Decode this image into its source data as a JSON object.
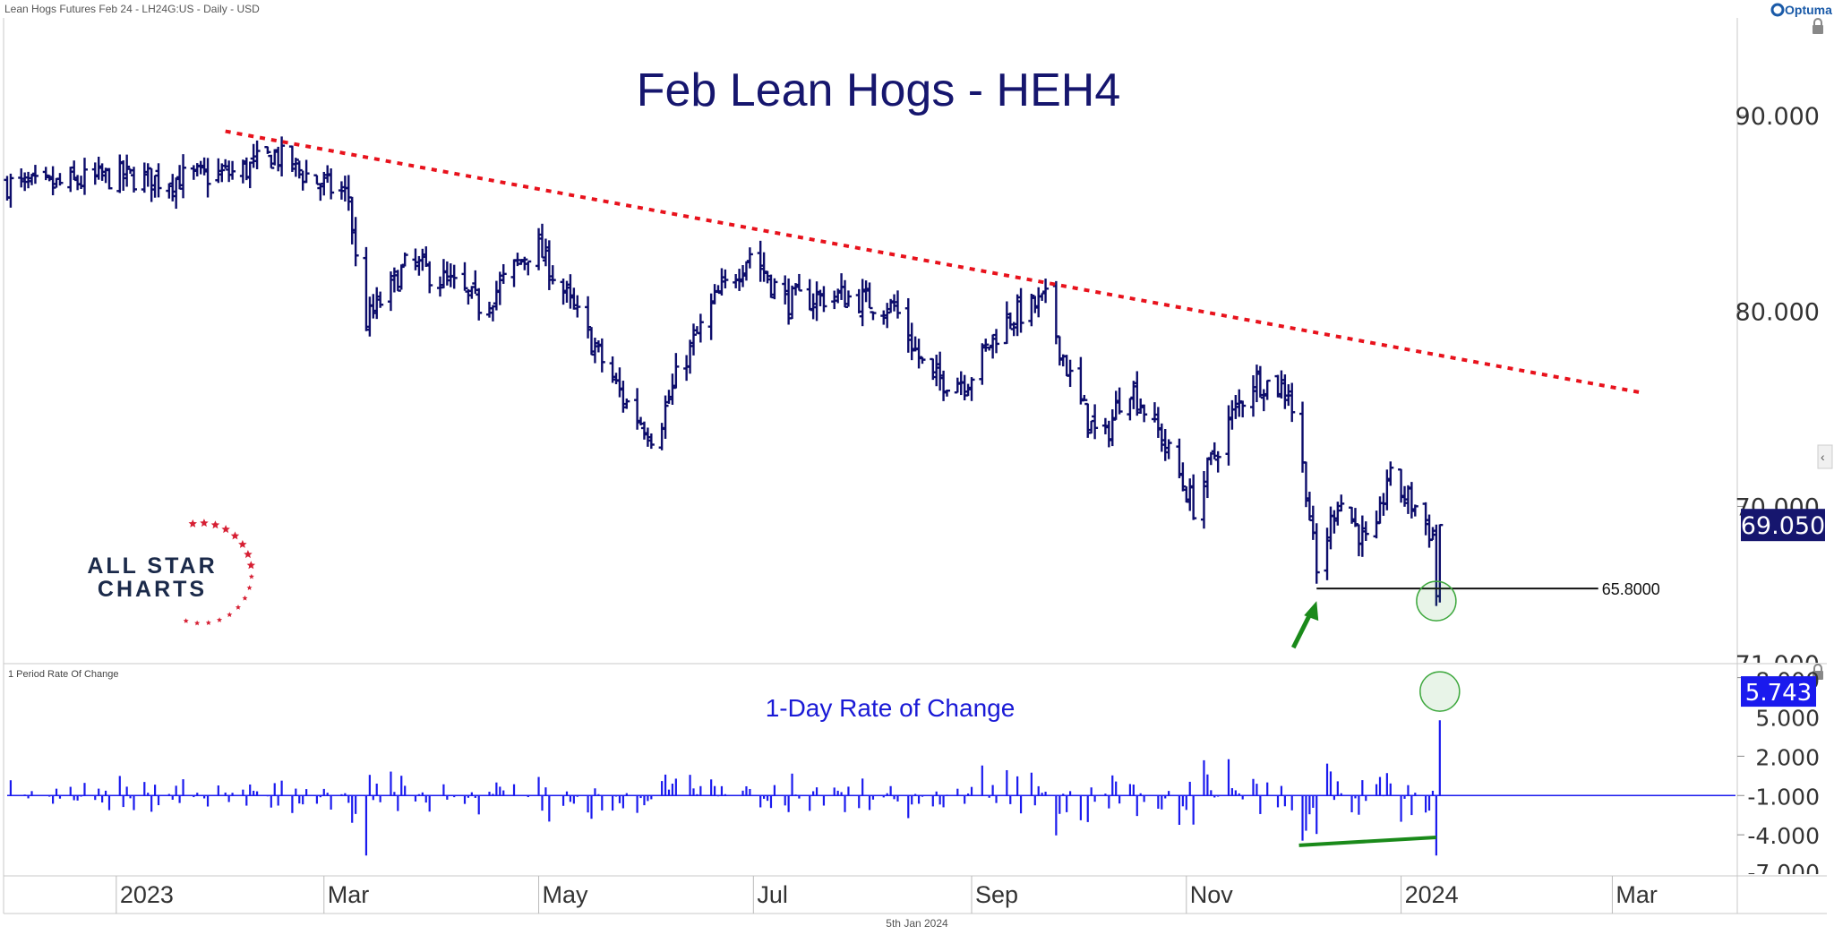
{
  "header": {
    "instrument": "Lean Hogs Futures Feb 24 - LH24G:US - Daily - USD",
    "brand": "Optuma"
  },
  "footer": {
    "date": "5th Jan 2024"
  },
  "logo": {
    "line1": "ALL STAR",
    "line2": "CHARTS"
  },
  "colors": {
    "price_bars": "#0d0d6b",
    "trendline": "#e8121c",
    "roc_bars": "#1a1aee",
    "roc_title": "#1a1ad6",
    "arrow": "#1a8a1a",
    "circle": "#3ea83e",
    "logo_text": "#1b2a4a",
    "logo_stars": "#d61f33"
  },
  "chart_data": [
    {
      "type": "ohlc",
      "title": "Feb Lean Hogs - HEH4",
      "x_tick_labels": [
        "2023",
        "Mar",
        "May",
        "Jul",
        "Sep",
        "Nov",
        "2024",
        "Mar"
      ],
      "x_range": [
        "2022-12-01",
        "2024-04-05"
      ],
      "ylim": [
        62,
        95
      ],
      "y_tick_labels": [
        "70.000",
        "80.000",
        "90.000"
      ],
      "y_partial_label": "71.000",
      "last_value_label": "69.050",
      "last_value": 69.05,
      "anchor_points": [
        [
          "2022-12-01",
          86.5
        ],
        [
          "2022-12-10",
          86.3
        ],
        [
          "2022-12-31",
          86.9
        ],
        [
          "2023-01-15",
          86.7
        ],
        [
          "2023-02-05",
          87.1
        ],
        [
          "2023-02-15",
          88.0
        ],
        [
          "2023-02-28",
          86.5
        ],
        [
          "2023-03-08",
          85.9
        ],
        [
          "2023-03-12",
          79.2
        ],
        [
          "2023-03-25",
          82.5
        ],
        [
          "2023-04-05",
          81.5
        ],
        [
          "2023-04-15",
          80.2
        ],
        [
          "2023-04-30",
          83.5
        ],
        [
          "2023-05-08",
          81.0
        ],
        [
          "2023-05-25",
          75.5
        ],
        [
          "2023-06-03",
          73.5
        ],
        [
          "2023-06-10",
          77.0
        ],
        [
          "2023-06-20",
          80.5
        ],
        [
          "2023-06-30",
          83.0
        ],
        [
          "2023-07-10",
          80.5
        ],
        [
          "2023-07-25",
          80.8
        ],
        [
          "2023-08-10",
          80.2
        ],
        [
          "2023-08-20",
          76.5
        ],
        [
          "2023-08-31",
          76.5
        ],
        [
          "2023-09-10",
          79.5
        ],
        [
          "2023-09-22",
          80.5
        ],
        [
          "2023-09-30",
          76.0
        ],
        [
          "2023-10-08",
          73.0
        ],
        [
          "2023-10-15",
          76.5
        ],
        [
          "2023-10-25",
          73.5
        ],
        [
          "2023-11-03",
          70.0
        ],
        [
          "2023-11-12",
          74.0
        ],
        [
          "2023-11-20",
          76.5
        ],
        [
          "2023-11-30",
          76.0
        ],
        [
          "2023-12-05",
          71.0
        ],
        [
          "2023-12-08",
          66.5
        ],
        [
          "2023-12-14",
          70.5
        ],
        [
          "2023-12-24",
          67.5
        ],
        [
          "2023-12-28",
          71.5
        ],
        [
          "2024-01-05",
          70.0
        ],
        [
          "2024-01-10",
          68.5
        ],
        [
          "2024-01-11",
          65.5
        ],
        [
          "2024-01-12",
          69.05
        ]
      ],
      "trendline": {
        "from": [
          "2023-02-01",
          89.2
        ],
        "to": [
          "2024-03-10",
          75.8
        ]
      },
      "support": {
        "value": 65.8,
        "label": "65.8000",
        "from": "2023-12-08",
        "to": "2024-02-26"
      },
      "highlight_circle_date": "2024-01-11",
      "arrow_date": "2023-12-08"
    },
    {
      "type": "bar",
      "panel_label": "1 Period Rate Of Change",
      "title": "1-Day Rate of Change",
      "ylim": [
        -7,
        9
      ],
      "y_tick_labels": [
        "8.000",
        "2.000",
        "-1.000",
        "-4.000"
      ],
      "y_partial_labels": [
        "5.000",
        "-7.000"
      ],
      "last_value_label": "5.743",
      "last_value": 5.743,
      "divergence_line": {
        "from": [
          "2023-12-03",
          -4.8
        ],
        "to": [
          "2024-01-11",
          -4.2
        ]
      },
      "highlight_circle_date": "2024-01-12"
    }
  ]
}
